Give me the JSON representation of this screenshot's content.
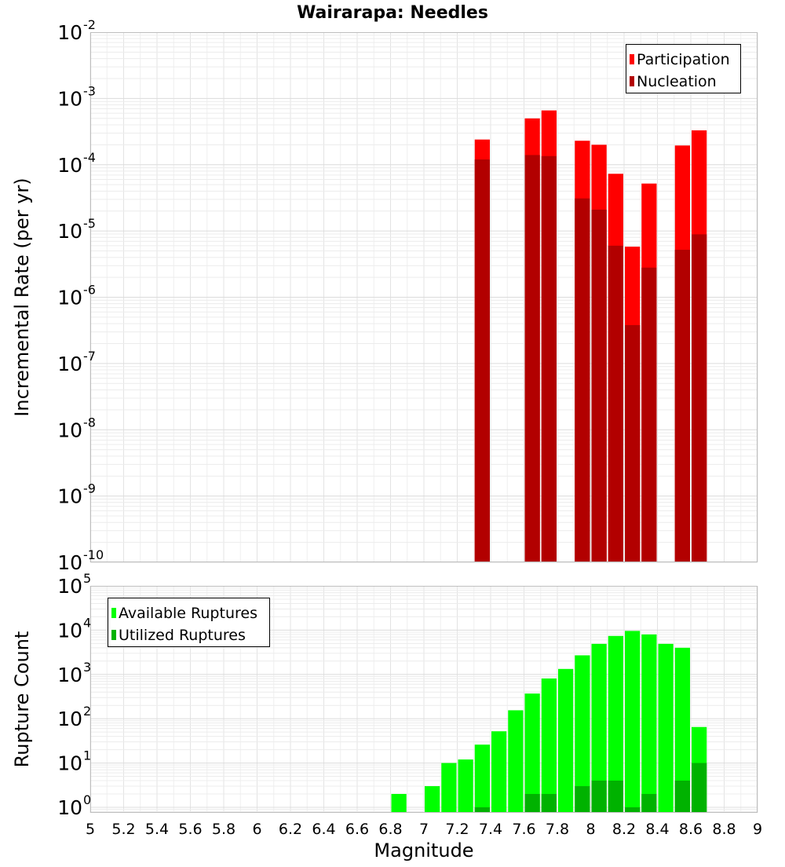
{
  "chart_data": [
    {
      "type": "bar",
      "title": "Wairarapa: Needles",
      "xlabel": "",
      "ylabel": "Incremental Rate (per yr)",
      "xlim": [
        5,
        9
      ],
      "ylim": [
        1e-10,
        0.01
      ],
      "yscale": "log",
      "bar_width": 0.1,
      "grid": true,
      "legend_position": "top-right",
      "y_ticks": [
        {
          "base": "10",
          "exp": "-10"
        },
        {
          "base": "10",
          "exp": "-9"
        },
        {
          "base": "10",
          "exp": "-8"
        },
        {
          "base": "10",
          "exp": "-7"
        },
        {
          "base": "10",
          "exp": "-6"
        },
        {
          "base": "10",
          "exp": "-5"
        },
        {
          "base": "10",
          "exp": "-4"
        },
        {
          "base": "10",
          "exp": "-3"
        },
        {
          "base": "10",
          "exp": "-2"
        }
      ],
      "series": [
        {
          "name": "Participation",
          "color": "#ff0000",
          "x": [
            7.35,
            7.65,
            7.75,
            7.95,
            8.05,
            8.15,
            8.25,
            8.35,
            8.55,
            8.65
          ],
          "values": [
            0.00024,
            0.0005,
            0.00066,
            0.00023,
            0.0002,
            7.3e-05,
            5.8e-06,
            5.2e-05,
            0.000195,
            0.00033
          ]
        },
        {
          "name": "Nucleation",
          "color": "#b20000",
          "x": [
            7.35,
            7.65,
            7.75,
            7.95,
            8.05,
            8.15,
            8.25,
            8.35,
            8.55,
            8.65
          ],
          "values": [
            0.00012,
            0.00014,
            0.000135,
            3.1e-05,
            2.1e-05,
            6e-06,
            3.8e-07,
            2.8e-06,
            5.2e-06,
            8.9e-06
          ]
        }
      ]
    },
    {
      "type": "bar",
      "title": "",
      "xlabel": "Magnitude",
      "ylabel": "Rupture Count",
      "xlim": [
        5,
        9
      ],
      "ylim": [
        0.75,
        100000.0
      ],
      "yscale": "log",
      "bar_width": 0.1,
      "grid": true,
      "legend_position": "top-left",
      "x_ticks": [
        "5",
        "5.2",
        "5.4",
        "5.6",
        "5.8",
        "6",
        "6.2",
        "6.4",
        "6.6",
        "6.8",
        "7",
        "7.2",
        "7.4",
        "7.6",
        "7.8",
        "8",
        "8.2",
        "8.4",
        "8.6",
        "8.8",
        "9"
      ],
      "y_ticks": [
        {
          "base": "10",
          "exp": "0"
        },
        {
          "base": "10",
          "exp": "1"
        },
        {
          "base": "10",
          "exp": "2"
        },
        {
          "base": "10",
          "exp": "3"
        },
        {
          "base": "10",
          "exp": "4"
        },
        {
          "base": "10",
          "exp": "5"
        }
      ],
      "series": [
        {
          "name": "Available Ruptures",
          "color": "#00ff00",
          "x": [
            6.85,
            7.05,
            7.15,
            7.25,
            7.35,
            7.45,
            7.55,
            7.65,
            7.75,
            7.85,
            7.95,
            8.05,
            8.15,
            8.25,
            8.35,
            8.45,
            8.55,
            8.65
          ],
          "values": [
            2,
            3,
            10,
            12,
            26,
            52,
            155,
            370,
            810,
            1330,
            2700,
            4900,
            7400,
            9600,
            8000,
            4900,
            4000,
            65
          ]
        },
        {
          "name": "Utilized Ruptures",
          "color": "#00b200",
          "x": [
            7.35,
            7.65,
            7.75,
            7.95,
            8.05,
            8.15,
            8.25,
            8.35,
            8.55,
            8.65
          ],
          "values": [
            1,
            2,
            2,
            3,
            4,
            4,
            1,
            2,
            4,
            10
          ]
        }
      ]
    }
  ]
}
